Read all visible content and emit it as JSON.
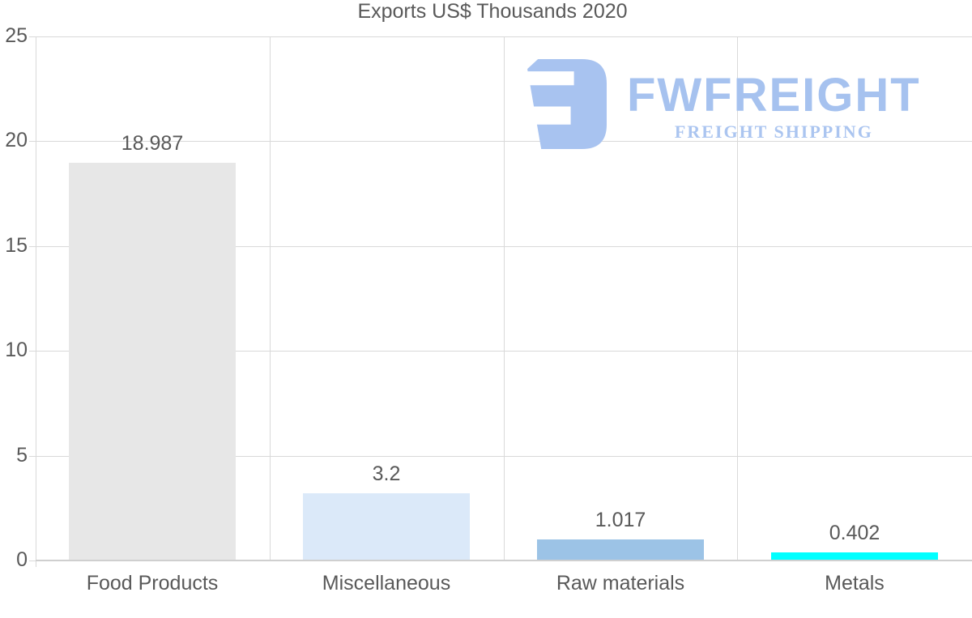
{
  "title": "Exports US$ Thousands 2020",
  "watermark": {
    "brand": "FWFREIGHT",
    "tagline": "FREIGHT SHIPPING",
    "color": "#a6c2ef",
    "icon": "fwfreight-logo-icon"
  },
  "chart_data": {
    "type": "bar",
    "title": "Exports US$ Thousands 2020",
    "categories": [
      "Food Products",
      "Miscellaneous",
      "Raw materials",
      "Metals"
    ],
    "values": [
      18.987,
      3.2,
      1.017,
      0.402
    ],
    "value_labels": [
      "18.987",
      "3.2",
      "1.017",
      "0.402"
    ],
    "bar_colors": [
      "#e7e7e7",
      "#dbe9f9",
      "#9cc3e6",
      "#00ffff"
    ],
    "xlabel": "",
    "ylabel": "",
    "ylim": [
      0,
      25
    ],
    "yticks": [
      0,
      5,
      10,
      15,
      20,
      25
    ],
    "grid": true,
    "legend": false,
    "text_color": "#595959",
    "grid_color": "#d9d9d9"
  }
}
